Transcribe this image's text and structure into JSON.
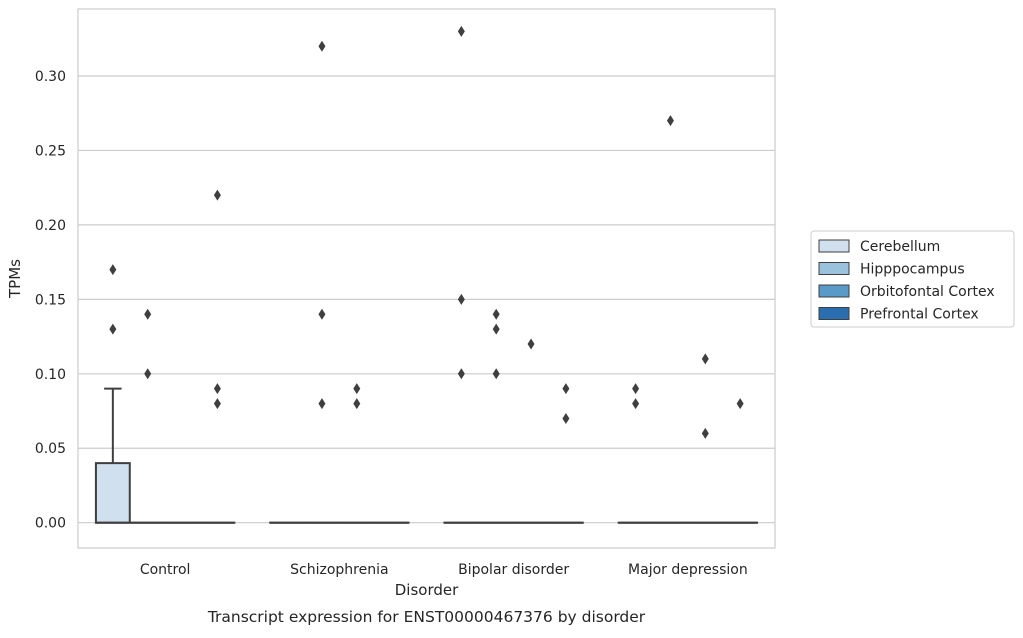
{
  "chart_data": {
    "type": "box",
    "title": "",
    "caption": "Transcript expression for ENST00000467376 by disorder",
    "xlabel": "Disorder",
    "ylabel": "TPMs",
    "ylim": [
      -0.017,
      0.345
    ],
    "yticks": [
      "0.00",
      "0.05",
      "0.10",
      "0.15",
      "0.20",
      "0.25",
      "0.30"
    ],
    "grid": "horizontal",
    "legend_position": "right",
    "categories": [
      "Control",
      "Schizophrenia",
      "Bipolar disorder",
      "Major depression"
    ],
    "series": [
      {
        "name": "Cerebellum",
        "color": "#d0e0ef",
        "boxes": [
          {
            "q1": 0.0,
            "median": 0.0,
            "q3": 0.04,
            "whisker_low": 0.0,
            "whisker_high": 0.09,
            "outliers": [
              0.13,
              0.17
            ]
          },
          {
            "q1": 0.0,
            "median": 0.0,
            "q3": 0.0,
            "whisker_low": 0.0,
            "whisker_high": 0.0,
            "outliers": []
          },
          {
            "q1": 0.0,
            "median": 0.0,
            "q3": 0.0,
            "whisker_low": 0.0,
            "whisker_high": 0.0,
            "outliers": [
              0.1,
              0.15,
              0.33
            ]
          },
          {
            "q1": 0.0,
            "median": 0.0,
            "q3": 0.0,
            "whisker_low": 0.0,
            "whisker_high": 0.0,
            "outliers": [
              0.08,
              0.09
            ]
          }
        ]
      },
      {
        "name": "Hipppocampus",
        "color": "#9ac2dc",
        "boxes": [
          {
            "q1": 0.0,
            "median": 0.0,
            "q3": 0.0,
            "whisker_low": 0.0,
            "whisker_high": 0.0,
            "outliers": [
              0.1,
              0.14
            ]
          },
          {
            "q1": 0.0,
            "median": 0.0,
            "q3": 0.0,
            "whisker_low": 0.0,
            "whisker_high": 0.0,
            "outliers": [
              0.08,
              0.14,
              0.32
            ]
          },
          {
            "q1": 0.0,
            "median": 0.0,
            "q3": 0.0,
            "whisker_low": 0.0,
            "whisker_high": 0.0,
            "outliers": [
              0.1,
              0.13,
              0.14
            ]
          },
          {
            "q1": 0.0,
            "median": 0.0,
            "q3": 0.0,
            "whisker_low": 0.0,
            "whisker_high": 0.0,
            "outliers": [
              0.27
            ]
          }
        ]
      },
      {
        "name": "Orbitofontal Cortex",
        "color": "#5a9ac8",
        "boxes": [
          {
            "q1": 0.0,
            "median": 0.0,
            "q3": 0.0,
            "whisker_low": 0.0,
            "whisker_high": 0.0,
            "outliers": []
          },
          {
            "q1": 0.0,
            "median": 0.0,
            "q3": 0.0,
            "whisker_low": 0.0,
            "whisker_high": 0.0,
            "outliers": [
              0.08,
              0.09
            ]
          },
          {
            "q1": 0.0,
            "median": 0.0,
            "q3": 0.0,
            "whisker_low": 0.0,
            "whisker_high": 0.0,
            "outliers": [
              0.12
            ]
          },
          {
            "q1": 0.0,
            "median": 0.0,
            "q3": 0.0,
            "whisker_low": 0.0,
            "whisker_high": 0.0,
            "outliers": [
              0.06,
              0.11
            ]
          }
        ]
      },
      {
        "name": "Prefrontal Cortex",
        "color": "#2a6eaf",
        "boxes": [
          {
            "q1": 0.0,
            "median": 0.0,
            "q3": 0.0,
            "whisker_low": 0.0,
            "whisker_high": 0.0,
            "outliers": [
              0.08,
              0.09,
              0.22
            ]
          },
          {
            "q1": 0.0,
            "median": 0.0,
            "q3": 0.0,
            "whisker_low": 0.0,
            "whisker_high": 0.0,
            "outliers": []
          },
          {
            "q1": 0.0,
            "median": 0.0,
            "q3": 0.0,
            "whisker_low": 0.0,
            "whisker_high": 0.0,
            "outliers": [
              0.07,
              0.09
            ]
          },
          {
            "q1": 0.0,
            "median": 0.0,
            "q3": 0.0,
            "whisker_low": 0.0,
            "whisker_high": 0.0,
            "outliers": [
              0.08
            ]
          }
        ]
      }
    ],
    "colors": {
      "grid": "#cccccc",
      "frame": "#cccccc",
      "box_edge": "#3f3f3f",
      "outlier": "#3f3f3f",
      "text": "#262626"
    }
  }
}
